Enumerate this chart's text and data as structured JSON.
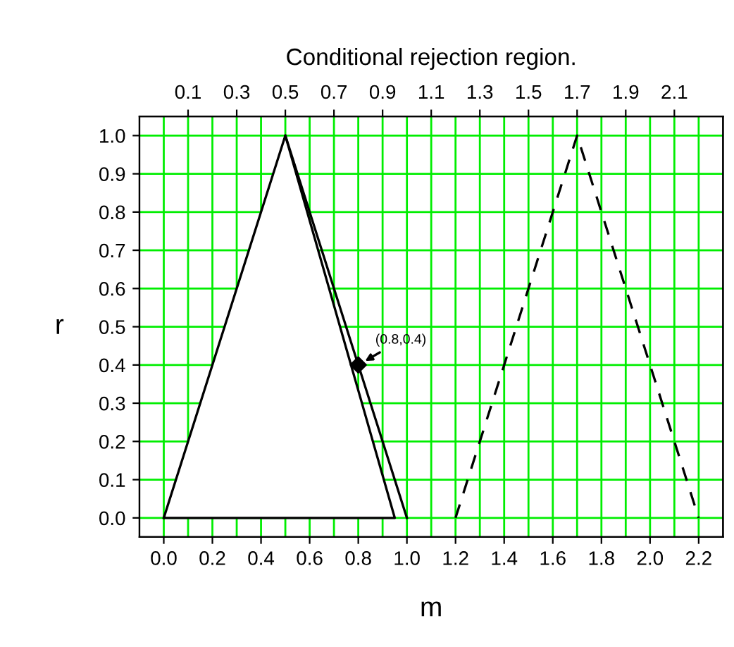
{
  "chart_data": {
    "type": "line",
    "title": "Conditional rejection region.",
    "xlabel": "m",
    "ylabel": "r",
    "series": [
      {
        "type": "area",
        "x": [
          0.0,
          0.5,
          0.95
        ],
        "values": [
          0.0,
          1.0,
          0.0
        ],
        "color": "#000000"
      },
      {
        "x": [
          0.5,
          1.0
        ],
        "values": [
          1.0,
          0.0
        ],
        "color": "#000000"
      },
      {
        "x": [
          1.2,
          1.7,
          2.2
        ],
        "values": [
          0.0,
          1.0,
          0.0
        ],
        "color": "#000000",
        "line_style": "dashed"
      },
      {
        "type": "scatter",
        "x": [
          0.8
        ],
        "values": [
          0.4
        ],
        "color": "#000000",
        "marker": "diamond"
      }
    ],
    "annotations": [
      {
        "text": "(0.8,0.4)",
        "x": 0.8,
        "y": 0.4
      }
    ],
    "xlim": [
      -0.1,
      2.3
    ],
    "ylim": [
      -0.05,
      1.05
    ],
    "xticks": [
      {
        "value": 0.0,
        "label": "0.0"
      },
      0.2,
      0.4,
      0.6,
      0.8,
      {
        "value": 1.0,
        "label": "1.0"
      },
      1.2,
      1.4,
      1.6,
      1.8,
      {
        "value": 2.0,
        "label": "2.0"
      },
      2.2
    ],
    "x2lim": [
      -0.1,
      2.3
    ],
    "x2ticks": [
      0.1,
      0.3,
      0.5,
      0.7,
      0.9,
      1.1,
      1.3,
      1.5,
      1.7,
      1.9,
      2.1
    ],
    "yticks": [
      {
        "value": 0.0,
        "label": "0.0"
      },
      0.1,
      0.2,
      0.3,
      0.4,
      0.5,
      0.6,
      0.7,
      0.8,
      0.9,
      {
        "value": 1.0,
        "label": "1.0"
      }
    ],
    "grid": true
  }
}
